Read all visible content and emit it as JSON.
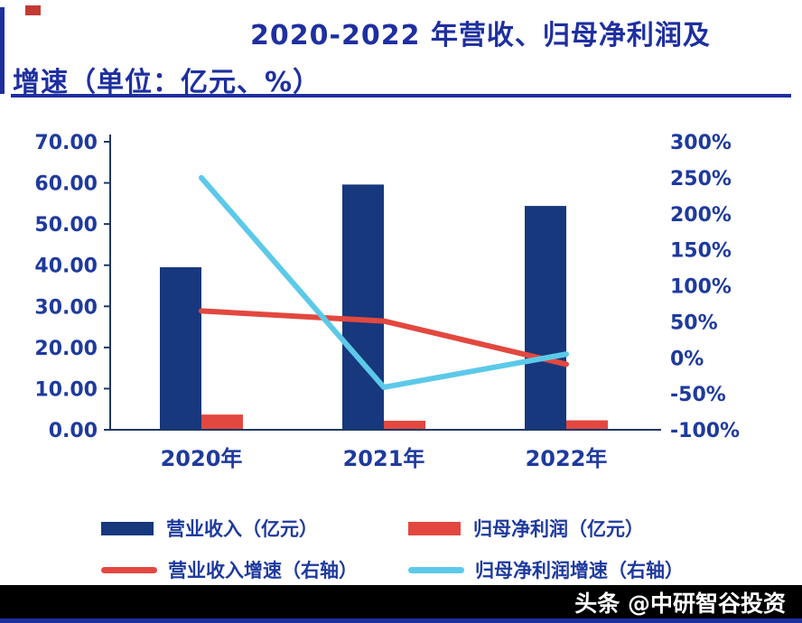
{
  "page": {
    "title_line1": "2020-2022 年营收、归母净利润及",
    "title_line2": "增速（单位：亿元、%）",
    "watermark": "头条 @中研智谷投资"
  },
  "colors": {
    "title_blue": "#1e2fa0",
    "tick_text": "#1e3a9e",
    "axis_navy": "#1f3864",
    "bar_navy": "#17387d",
    "bar_red": "#e2483f",
    "line_red": "#e2483f",
    "line_cyan": "#5cc9e9",
    "footer_bg": "#000000",
    "footer_text": "#ffffff"
  },
  "chart_data": {
    "type": "bar+line",
    "title": "2020-2022 年营收、归母净利润及增速（单位：亿元、%）",
    "categories": [
      "2020年",
      "2021年",
      "2022年"
    ],
    "series": [
      {
        "name": "营业收入（亿元）",
        "type": "bar",
        "axis": "left",
        "color_key": "bar_navy",
        "values": [
          39.5,
          59.6,
          54.4
        ]
      },
      {
        "name": "归母净利润（亿元）",
        "type": "bar",
        "axis": "left",
        "color_key": "bar_red",
        "values": [
          3.7,
          2.2,
          2.3
        ]
      },
      {
        "name": "营业收入增速（右轴）",
        "type": "line",
        "axis": "right",
        "color_key": "line_red",
        "values": [
          65,
          51,
          -9
        ]
      },
      {
        "name": "归母净利润增速（右轴）",
        "type": "line",
        "axis": "right",
        "color_key": "line_cyan",
        "values": [
          250,
          -41,
          5
        ]
      }
    ],
    "left_axis": {
      "min": 0,
      "max": 70,
      "ticks": [
        "70.00",
        "60.00",
        "50.00",
        "40.00",
        "30.00",
        "20.00",
        "10.00",
        "0.00"
      ]
    },
    "right_axis": {
      "min": -100,
      "max": 300,
      "ticks": [
        "300%",
        "250%",
        "200%",
        "150%",
        "100%",
        "50%",
        "0%",
        "-50%",
        "-100%"
      ]
    },
    "grid": false,
    "legend_position": "bottom"
  }
}
